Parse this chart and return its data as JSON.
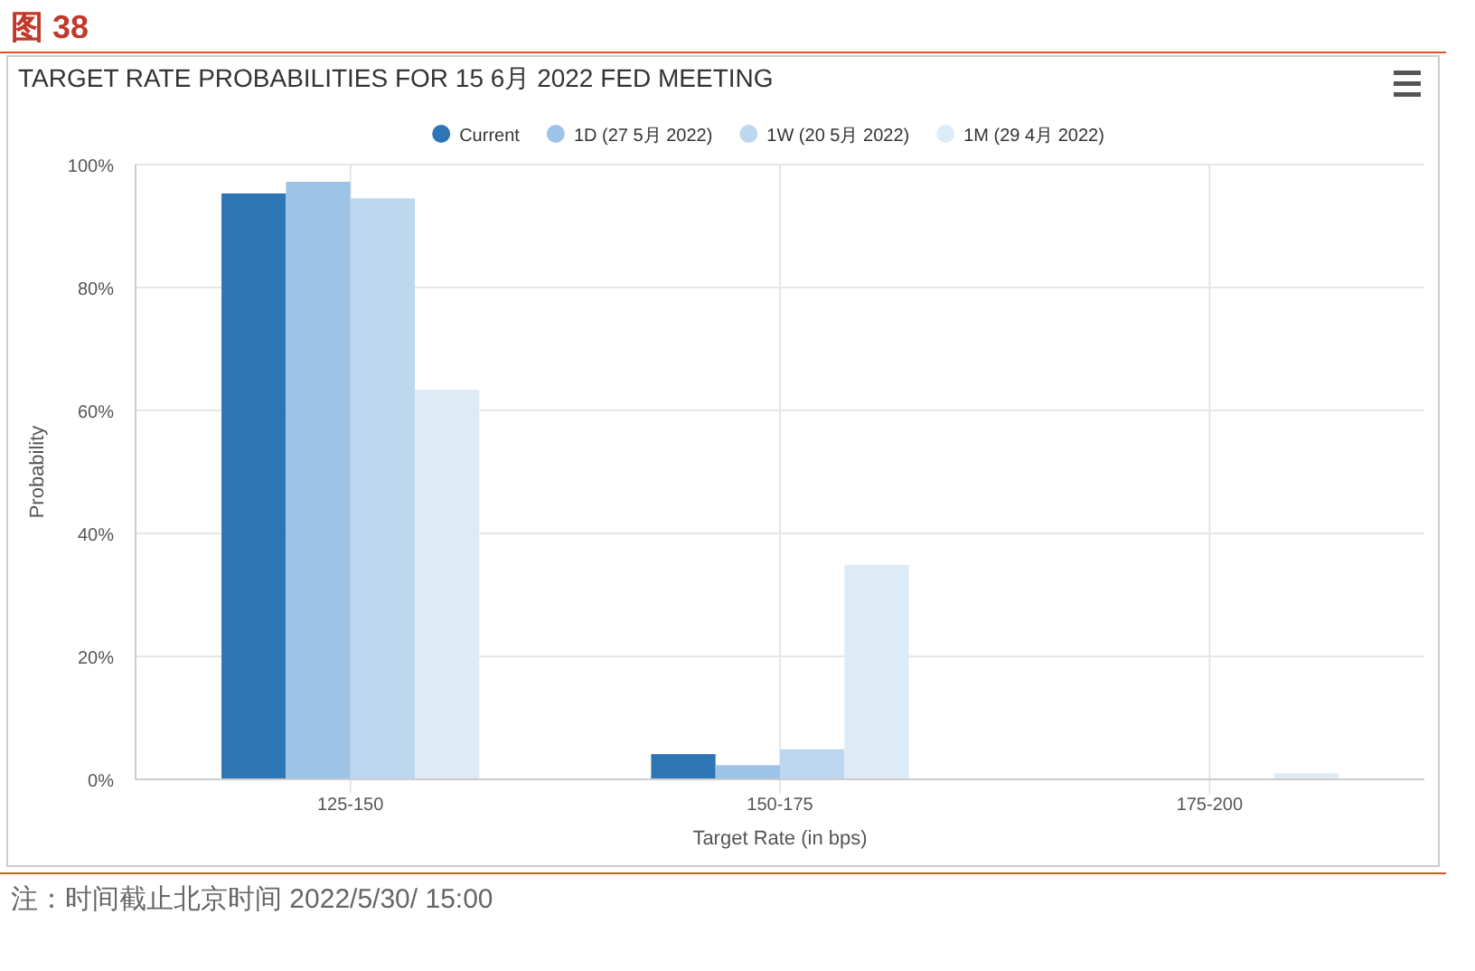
{
  "chart_data": {
    "type": "bar",
    "title": "图 38",
    "subtitle": "TARGET RATE PROBABILITIES FOR 15 6月 2022 FED MEETING",
    "xlabel": "Target Rate (in bps)",
    "ylabel": "Probability",
    "categories": [
      "125-150",
      "150-175",
      "175-200"
    ],
    "series": [
      {
        "name": "Current",
        "color": "#2e75b6",
        "values": [
          95.3,
          4.1,
          0
        ]
      },
      {
        "name": "1D (27 5月 2022)",
        "color": "#9dc3e6",
        "values": [
          97.2,
          2.3,
          0
        ]
      },
      {
        "name": "1W (20 5月 2022)",
        "color": "#bdd7ee",
        "values": [
          94.5,
          4.9,
          0
        ]
      },
      {
        "name": "1M (29 4月 2022)",
        "color": "#ddebf7",
        "values": [
          63.4,
          34.9,
          1.0
        ]
      }
    ],
    "ylim": [
      0,
      100
    ],
    "yticks": [
      {
        "value": 0,
        "label": "0%"
      },
      {
        "value": 20,
        "label": "20%"
      },
      {
        "value": 40,
        "label": "40%"
      },
      {
        "value": 60,
        "label": "60%"
      },
      {
        "value": 80,
        "label": "80%"
      },
      {
        "value": 100,
        "label": "100%"
      }
    ],
    "grid": true,
    "legend": "top",
    "annotations": [
      "注：时间截止北京时间 2022/5/30/ 15:00"
    ]
  }
}
